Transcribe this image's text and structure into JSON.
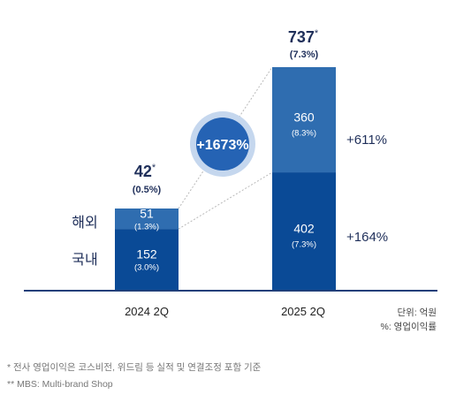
{
  "chart_data": {
    "type": "bar",
    "stacked": true,
    "categories": [
      "2024 2Q",
      "2025 2Q"
    ],
    "series": [
      {
        "name": "국내",
        "values": [
          152,
          402
        ],
        "margin_labels": [
          "(3.0%)",
          "(7.3%)"
        ],
        "color": "#0a4a96"
      },
      {
        "name": "해외",
        "values": [
          51,
          360
        ],
        "margin_labels": [
          "(1.3%)",
          "(8.3%)"
        ],
        "color": "#2f6db0"
      }
    ],
    "totals": [
      {
        "value": "42",
        "mark": "*",
        "margin": "(0.5%)"
      },
      {
        "value": "737",
        "mark": "*",
        "margin": "(7.3%)"
      }
    ],
    "growth_labels": {
      "overseas": "+611%",
      "domestic": "+164%",
      "highlight": "+1673%"
    },
    "units": [
      "단위: 억원",
      "%: 영업이익률"
    ],
    "colors": {
      "axis": "#1f3f7a",
      "text_dark": "#1f2f5a",
      "circle": "#2563b4",
      "ring": "#c5d7ee"
    }
  },
  "footnotes": [
    "* 전사 영업이익은 코스비전, 위드림 등 실적 및 연결조정 포함 기준",
    "** MBS: Multi-brand Shop"
  ]
}
